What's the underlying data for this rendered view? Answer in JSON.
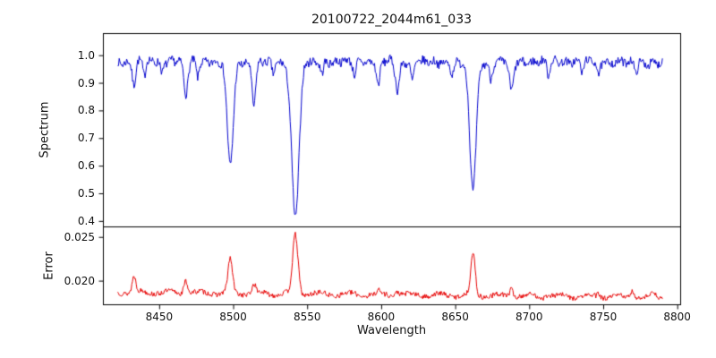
{
  "figure": {
    "background": "#ffffff",
    "frame_color": "#000000"
  },
  "chart_data": [
    {
      "type": "line",
      "name": "spectrum",
      "title": "20100722_2044m61_033",
      "ylabel": "Spectrum",
      "color": "#0000cd",
      "xlim": [
        8412,
        8802
      ],
      "ylim": [
        0.38,
        1.08
      ],
      "yticks": [
        0.4,
        0.5,
        0.6,
        0.7,
        0.8,
        0.9,
        1.0
      ],
      "ytick_labels": [
        "0.4",
        "0.5",
        "0.6",
        "0.7",
        "0.8",
        "0.9",
        "1.0"
      ],
      "x_start": 8422,
      "x_end": 8790,
      "x_step": 0.5,
      "seed": 7,
      "continuum": 0.975,
      "noise": 0.016,
      "wiggle": 0.012,
      "absorption_lines": [
        {
          "center": 8433,
          "depth": 0.08,
          "sigma": 1.2
        },
        {
          "center": 8440,
          "depth": 0.05,
          "sigma": 0.9
        },
        {
          "center": 8452,
          "depth": 0.04,
          "sigma": 0.9
        },
        {
          "center": 8468,
          "depth": 0.12,
          "sigma": 1.4
        },
        {
          "center": 8476,
          "depth": 0.05,
          "sigma": 0.9
        },
        {
          "center": 8498,
          "depth": 0.37,
          "sigma": 2.1
        },
        {
          "center": 8514,
          "depth": 0.15,
          "sigma": 1.3
        },
        {
          "center": 8527,
          "depth": 0.04,
          "sigma": 0.9
        },
        {
          "center": 8542,
          "depth": 0.56,
          "sigma": 2.5
        },
        {
          "center": 8560,
          "depth": 0.04,
          "sigma": 0.9
        },
        {
          "center": 8582,
          "depth": 0.05,
          "sigma": 1.0
        },
        {
          "center": 8598,
          "depth": 0.09,
          "sigma": 1.2
        },
        {
          "center": 8611,
          "depth": 0.1,
          "sigma": 1.4
        },
        {
          "center": 8621,
          "depth": 0.07,
          "sigma": 1.0
        },
        {
          "center": 8648,
          "depth": 0.04,
          "sigma": 0.9
        },
        {
          "center": 8662,
          "depth": 0.46,
          "sigma": 2.2
        },
        {
          "center": 8674,
          "depth": 0.06,
          "sigma": 1.0
        },
        {
          "center": 8688,
          "depth": 0.11,
          "sigma": 1.4
        },
        {
          "center": 8713,
          "depth": 0.05,
          "sigma": 1.0
        },
        {
          "center": 8736,
          "depth": 0.04,
          "sigma": 0.9
        },
        {
          "center": 8747,
          "depth": 0.05,
          "sigma": 1.0
        },
        {
          "center": 8772,
          "depth": 0.04,
          "sigma": 0.9
        }
      ]
    },
    {
      "type": "line",
      "name": "error",
      "ylabel": "Error",
      "xlabel": "Wavelength",
      "color": "#e60000",
      "xlim": [
        8412,
        8802
      ],
      "ylim": [
        0.0173,
        0.0262
      ],
      "yticks": [
        0.02,
        0.025
      ],
      "ytick_labels": [
        "0.020",
        "0.025"
      ],
      "xticks": [
        8450,
        8500,
        8550,
        8600,
        8650,
        8700,
        8750,
        8800
      ],
      "xtick_labels": [
        "8450",
        "8500",
        "8550",
        "8600",
        "8650",
        "8700",
        "8750",
        "8800"
      ],
      "x_start": 8422,
      "x_end": 8790,
      "x_step": 0.5,
      "seed": 13,
      "baseline_start": 0.0187,
      "baseline_end": 0.0181,
      "noise": 0.0003,
      "wiggle": 0.0002,
      "emission_peaks": [
        {
          "center": 8433,
          "height": 0.0018,
          "sigma": 1.2
        },
        {
          "center": 8468,
          "height": 0.0015,
          "sigma": 1.3
        },
        {
          "center": 8498,
          "height": 0.0038,
          "sigma": 1.5
        },
        {
          "center": 8514,
          "height": 0.001,
          "sigma": 1.2
        },
        {
          "center": 8542,
          "height": 0.0067,
          "sigma": 1.8
        },
        {
          "center": 8598,
          "height": 0.0004,
          "sigma": 1.0
        },
        {
          "center": 8611,
          "height": 0.0005,
          "sigma": 1.2
        },
        {
          "center": 8662,
          "height": 0.0047,
          "sigma": 1.5
        },
        {
          "center": 8688,
          "height": 0.0009,
          "sigma": 1.2
        },
        {
          "center": 8713,
          "height": 0.0004,
          "sigma": 1.0
        },
        {
          "center": 8747,
          "height": 0.0004,
          "sigma": 1.0
        },
        {
          "center": 8770,
          "height": 0.0008,
          "sigma": 1.2
        },
        {
          "center": 8784,
          "height": 0.0006,
          "sigma": 1.0
        }
      ]
    }
  ]
}
